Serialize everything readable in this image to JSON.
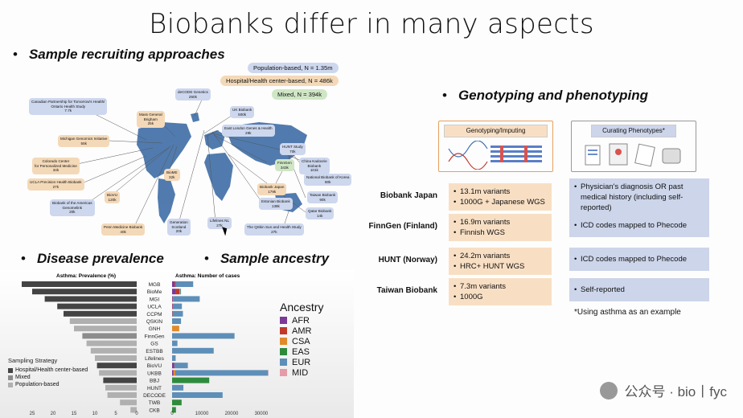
{
  "slide": {
    "title": "Biobanks differ in many aspects",
    "bullet_recruit": "Sample recruiting approaches",
    "bullet_disease": "Disease prevalence",
    "bullet_ancestry": "Sample ancestry",
    "bullet_geno": "Genotyping and phenotyping",
    "bullet_symbol": "•"
  },
  "map": {
    "legend": [
      {
        "label": "Population-based, N = 1.35m",
        "kind": "pop"
      },
      {
        "label": "Hospital/Health center-based, N = 486k",
        "kind": "hosp"
      },
      {
        "label": "Mixed, N = 394k",
        "kind": "mix"
      }
    ],
    "biobanks": [
      {
        "name": "Canadian Partnership for Tomorrow's Health/",
        "name2": "Ontario Health Study",
        "n": "7.7k",
        "kind": "pop"
      },
      {
        "name": "Mass General",
        "name2": "Brigham",
        "n": "25k",
        "kind": "hosp"
      },
      {
        "name": "deCODE Genetics",
        "name2": "",
        "n": "250k",
        "kind": "pop"
      },
      {
        "name": "UK Biobank",
        "name2": "",
        "n": "500k",
        "kind": "pop"
      },
      {
        "name": "Michigan Genomics Initiative",
        "name2": "",
        "n": "55k",
        "kind": "hosp"
      },
      {
        "name": "East London Genes & Health",
        "name2": "",
        "n": "29k",
        "kind": "pop"
      },
      {
        "name": "HUNT Study",
        "name2": "",
        "n": "70k",
        "kind": "pop"
      },
      {
        "name": "Colorado Center",
        "name2": "for Personalized Medicine",
        "n": "34k",
        "kind": "hosp"
      },
      {
        "name": "FinnGen",
        "name2": "",
        "n": "343k",
        "kind": "mix"
      },
      {
        "name": "China Kadoorie",
        "name2": "Biobank",
        "n": "101k",
        "kind": "pop"
      },
      {
        "name": "UCLA Precision Health Biobank",
        "name2": "",
        "n": "27k",
        "kind": "hosp"
      },
      {
        "name": "BioME",
        "name2": "",
        "n": "32k",
        "kind": "hosp"
      },
      {
        "name": "Biobank Japan",
        "name2": "",
        "n": "179k",
        "kind": "hosp"
      },
      {
        "name": "National Biobank of Korea",
        "name2": "",
        "n": "80k",
        "kind": "pop"
      },
      {
        "name": "BioVU",
        "name2": "",
        "n": "120k",
        "kind": "hosp"
      },
      {
        "name": "Estonian Biobank",
        "name2": "",
        "n": "138k",
        "kind": "pop"
      },
      {
        "name": "Taiwan Biobank",
        "name2": "",
        "n": "90k",
        "kind": "pop"
      },
      {
        "name": "Biobank of the Americas",
        "name2": "Genomelink",
        "n": "20k",
        "kind": "pop"
      },
      {
        "name": "Qatar Biobank",
        "name2": "",
        "n": "14k",
        "kind": "pop"
      },
      {
        "name": "Lifelines NL",
        "name2": "",
        "n": "27k",
        "kind": "pop"
      },
      {
        "name": "Generation",
        "name2": "Scotland",
        "n": "20k",
        "kind": "pop"
      },
      {
        "name": "Penn Medicine Biobank",
        "name2": "",
        "n": "40k",
        "kind": "hosp"
      },
      {
        "name": "The QSkin Sun and Health Study",
        "name2": "",
        "n": "27k",
        "kind": "pop"
      }
    ]
  },
  "geno": {
    "col_geno": "Genotyping/Imputing",
    "col_pheno": "Curating Phenotypes*",
    "rows": [
      {
        "label": "Biobank Japan",
        "geno": [
          "13.1m variants",
          "1000G + Japanese WGS"
        ],
        "pheno": [
          "Physician's diagnosis OR past medical history (including self-reported)"
        ]
      },
      {
        "label": "FinnGen (Finland)",
        "geno": [
          "16.9m variants",
          "Finnish WGS"
        ],
        "pheno": [
          "ICD codes mapped to Phecode"
        ]
      },
      {
        "label": "HUNT (Norway)",
        "geno": [
          "24.2m variants",
          "HRC+ HUNT WGS"
        ],
        "pheno": [
          "ICD codes mapped to Phecode"
        ]
      },
      {
        "label": "Taiwan Biobank",
        "geno": [
          "7.3m variants",
          "1000G"
        ],
        "pheno": [
          "Self-reported"
        ]
      }
    ],
    "note": "*Using asthma as an example"
  },
  "chart_data": [
    {
      "type": "bar",
      "title": "Asthma: Prevalence (%)",
      "orientation": "horizontal-reversed",
      "categories": [
        "MGB",
        "BioMe",
        "MGI",
        "UCLA",
        "CCPM",
        "QSKIN",
        "GNH",
        "FinnGen",
        "GS",
        "ESTBB",
        "Lifelines",
        "BioVU",
        "UKBB",
        "BBJ",
        "HUNT",
        "DECODE",
        "TWB",
        "CKB"
      ],
      "values": [
        27.5,
        25,
        22,
        19,
        17.5,
        16,
        15,
        13,
        12,
        11,
        10,
        9.5,
        9,
        8,
        7.5,
        7,
        4,
        1.5
      ],
      "strategy": [
        "Hospital/Health center-based",
        "Hospital/Health center-based",
        "Hospital/Health center-based",
        "Hospital/Health center-based",
        "Hospital/Health center-based",
        "Population-based",
        "Population-based",
        "Mixed",
        "Population-based",
        "Population-based",
        "Population-based",
        "Hospital/Health center-based",
        "Population-based",
        "Hospital/Health center-based",
        "Population-based",
        "Population-based",
        "Population-based",
        "Population-based"
      ],
      "ticks": [
        "25",
        "20",
        "15",
        "10",
        "5",
        "0"
      ],
      "legend_title": "Sampling Strategy",
      "legend": [
        {
          "label": "Hospital/Health center-based",
          "color": "#444444"
        },
        {
          "label": "Mixed",
          "color": "#8c8c8c"
        },
        {
          "label": "Population-based",
          "color": "#b0b0b0"
        }
      ]
    },
    {
      "type": "bar",
      "stacked": true,
      "title": "Asthma: Number of cases",
      "categories": [
        "MGB",
        "BioMe",
        "MGI",
        "UCLA",
        "CCPM",
        "QSKIN",
        "GNH",
        "FinnGen",
        "GS",
        "ESTBB",
        "Lifelines",
        "BioVU",
        "UKBB",
        "BBJ",
        "HUNT",
        "DECODE",
        "TWB",
        "CKB"
      ],
      "ticks": [
        "0",
        "10000",
        "20000",
        "30000"
      ],
      "xlim": [
        0,
        33000
      ],
      "series": [
        {
          "name": "AFR",
          "color": "#7b3a96",
          "values": [
            900,
            1200,
            200,
            200,
            0,
            0,
            0,
            0,
            0,
            0,
            0,
            700,
            400,
            0,
            0,
            0,
            0,
            0
          ]
        },
        {
          "name": "AMR",
          "color": "#c0392b",
          "values": [
            400,
            1300,
            100,
            200,
            150,
            0,
            0,
            0,
            0,
            0,
            0,
            100,
            100,
            0,
            0,
            0,
            0,
            0
          ]
        },
        {
          "name": "CSA",
          "color": "#e08a2c",
          "values": [
            0,
            200,
            0,
            100,
            0,
            0,
            2400,
            0,
            0,
            0,
            0,
            0,
            600,
            0,
            0,
            0,
            0,
            0
          ]
        },
        {
          "name": "EAS",
          "color": "#2e8b3d",
          "values": [
            0,
            100,
            0,
            0,
            0,
            0,
            0,
            0,
            0,
            0,
            0,
            0,
            200,
            12500,
            0,
            0,
            3200,
            1300
          ]
        },
        {
          "name": "EUR",
          "color": "#5d8fb8",
          "values": [
            5800,
            200,
            9000,
            2800,
            3500,
            3000,
            0,
            21000,
            1800,
            14000,
            1200,
            4500,
            31000,
            0,
            3800,
            17000,
            0,
            0
          ]
        },
        {
          "name": "MID",
          "color": "#e59aa8",
          "values": [
            0,
            0,
            0,
            0,
            0,
            0,
            0,
            0,
            0,
            0,
            0,
            0,
            100,
            0,
            0,
            0,
            0,
            0
          ]
        }
      ]
    }
  ],
  "ancestry_legend_title": "Ancestry",
  "watermark": "公众号 · bio丨fyc"
}
